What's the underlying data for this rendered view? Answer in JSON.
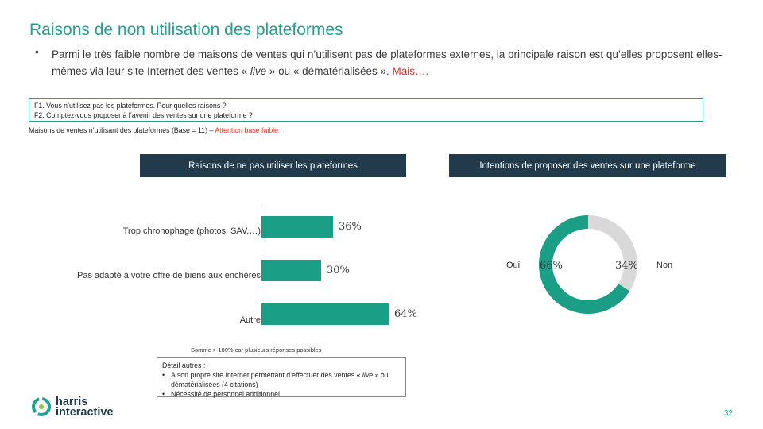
{
  "title": "Raisons de non utilisation des plateformes",
  "intro": {
    "bullet": "•",
    "text_1": "Parmi le très faible nombre de maisons de ventes qui n’utilisent pas de plateformes externes, la principale raison est qu’elles proposent elles-mêmes via leur site Internet des ventes « ",
    "live": "live",
    "text_2": " » ou « dématérialisées ». ",
    "highlight": "Mais…."
  },
  "questions": [
    "F1. Vous n’utilisez pas les plateformes. Pour quelles raisons ?",
    "F2. Comptez-vous proposer à l’avenir des ventes sur une plateforme ?"
  ],
  "base": {
    "text": "Maisons de ventes n’utilisant des plateformes (Base = 11) – ",
    "warning": "Attention base faible !"
  },
  "headers": {
    "left": "Raisons de ne pas utiliser les plateformes",
    "right": "Intentions de proposer des ventes sur une plateforme"
  },
  "chart_data": [
    {
      "type": "bar",
      "orientation": "horizontal",
      "title": "Raisons de ne pas utiliser les plateformes",
      "categories": [
        "Trop chronophage (photos, SAV,…)",
        "Pas adapté à votre offre de biens aux enchères",
        "Autre"
      ],
      "values": [
        36,
        30,
        64
      ],
      "value_labels": [
        "36%",
        "30%",
        "64%"
      ],
      "xlim": [
        0,
        100
      ],
      "color": "#1a9e86"
    },
    {
      "type": "pie",
      "style": "donut",
      "title": "Intentions de proposer des ventes sur une plateforme",
      "labels": [
        "Oui",
        "Non"
      ],
      "values": [
        66,
        34
      ],
      "value_labels": [
        "66%",
        "34%"
      ],
      "colors": [
        "#1a9e86",
        "#d9d9d9"
      ]
    }
  ],
  "note": "Somme > 100% car plusieurs réponses possibles",
  "detail": {
    "title": "Détail autres :",
    "item1_pre": "A son propre site Internet permettant d’effectuer des ventes « ",
    "item1_live": "live",
    "item1_post": " » ou dématérialisées (4 citations)",
    "item2": "Nécessité de personnel additionnel"
  },
  "logo": {
    "line1": "harris",
    "line2": "interactive"
  },
  "page_number": "32"
}
